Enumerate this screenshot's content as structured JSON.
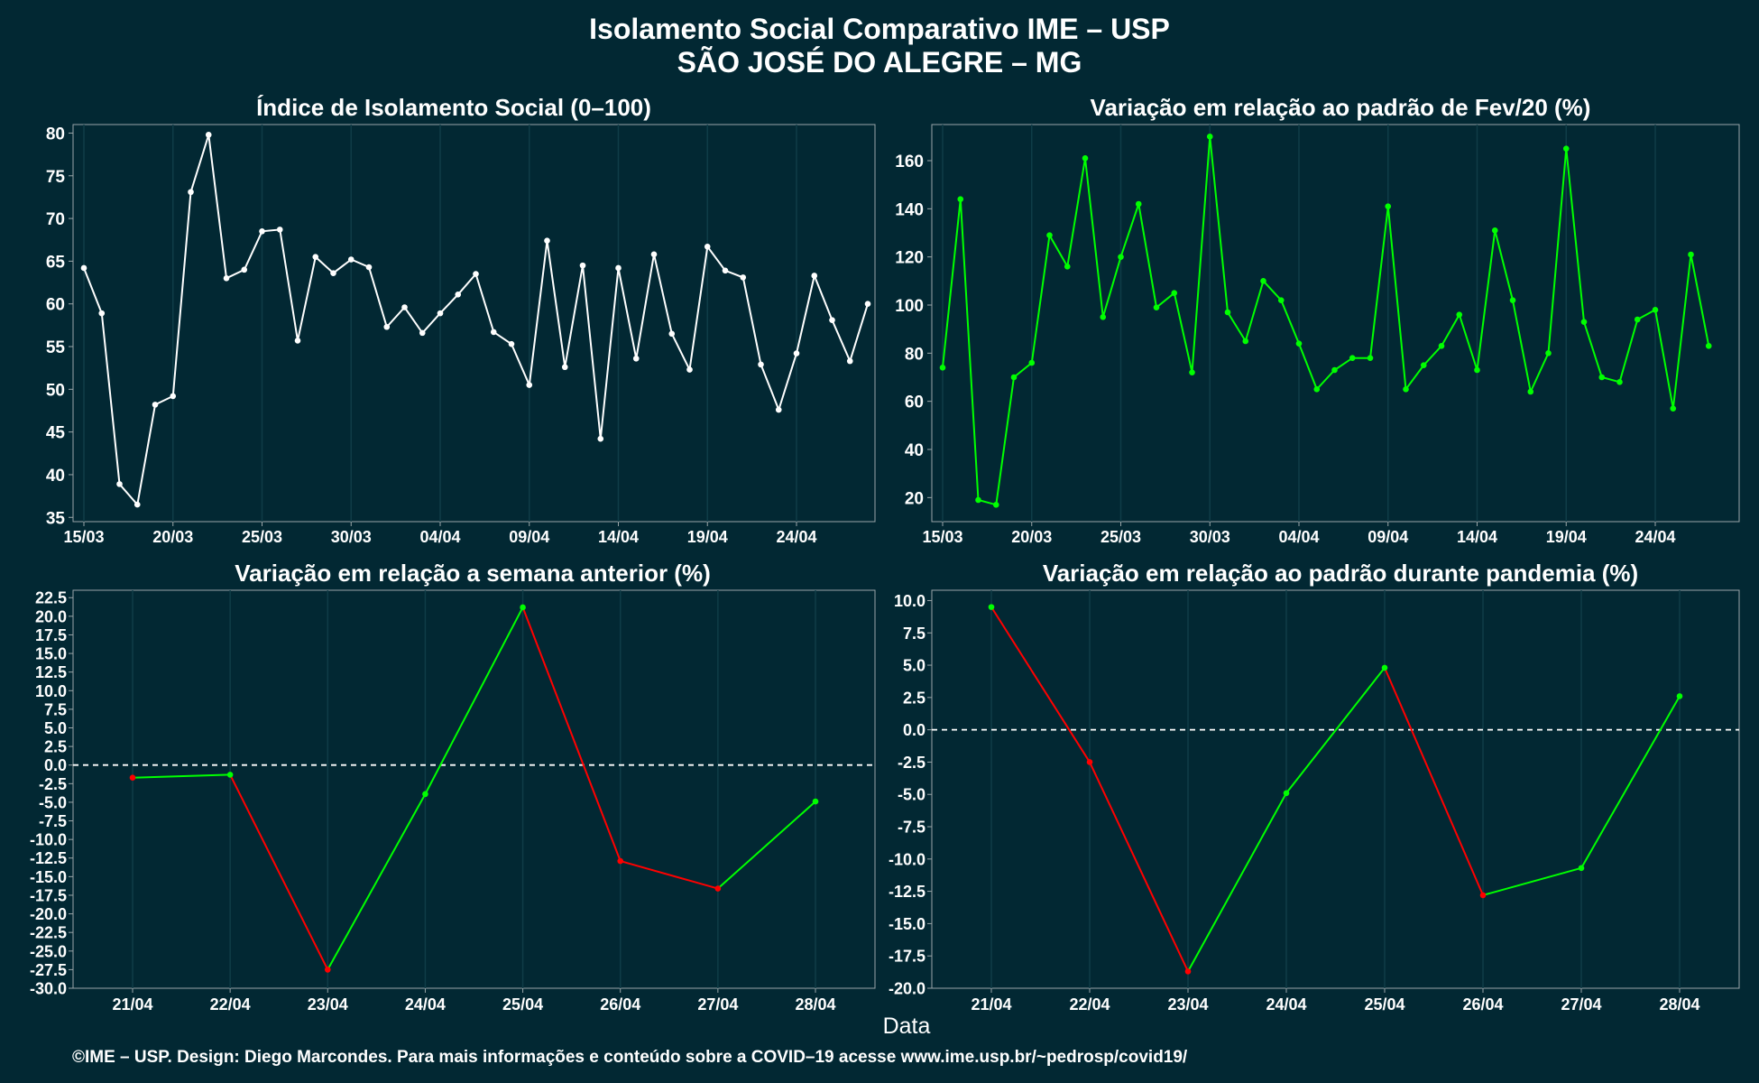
{
  "header": {
    "title_line1": "Isolamento Social Comparativo IME – USP",
    "title_line2": "SÃO JOSÉ DO ALEGRE – MG"
  },
  "footer": {
    "xlabel": "Data",
    "credits": "©IME – USP. Design: Diego Marcondes. Para mais informações e conteúdo sobre a COVID–19 acesse www.ime.usp.br/~pedrosp/covid19/"
  },
  "colors": {
    "background": "#022833",
    "white": "#ffffff",
    "green": "#00ff00",
    "red": "#ff0000",
    "grid": "#0f3c47"
  },
  "chart_data": [
    {
      "type": "line",
      "title": "Índice de Isolamento Social (0–100)",
      "x_start": "2020-03-15",
      "x_tick_labels": [
        "15/03",
        "20/03",
        "25/03",
        "30/03",
        "04/04",
        "09/04",
        "14/04",
        "19/04",
        "24/04"
      ],
      "ylim": [
        34.5,
        81
      ],
      "y_ticks": [
        35,
        40,
        45,
        50,
        55,
        60,
        65,
        70,
        75,
        80
      ],
      "series": [
        {
          "color": "#ffffff",
          "values": [
            64.2,
            58.9,
            38.9,
            36.5,
            48.2,
            49.2,
            73.1,
            79.8,
            63.0,
            64.0,
            68.5,
            68.7,
            55.7,
            65.5,
            63.6,
            65.2,
            64.3,
            57.3,
            59.6,
            56.6,
            58.9,
            61.1,
            63.5,
            56.7,
            55.3,
            50.5,
            67.4,
            52.6,
            64.5,
            44.2,
            64.2,
            53.6,
            65.8,
            56.5,
            52.3,
            66.7,
            63.9,
            63.1,
            52.9,
            47.6,
            54.2,
            63.3,
            58.1,
            53.3,
            60.0
          ]
        }
      ],
      "grid": true
    },
    {
      "type": "line",
      "title": "Variação em relação ao padrão de Fev/20 (%)",
      "x_start": "2020-03-15",
      "x_tick_labels": [
        "15/03",
        "20/03",
        "25/03",
        "30/03",
        "04/04",
        "09/04",
        "14/04",
        "19/04",
        "24/04"
      ],
      "ylim": [
        10,
        175
      ],
      "y_ticks": [
        20,
        40,
        60,
        80,
        100,
        120,
        140,
        160
      ],
      "series": [
        {
          "color": "#00ff00",
          "values": [
            74,
            144,
            19,
            17,
            70,
            76,
            129,
            116,
            161,
            95,
            120,
            142,
            99,
            105,
            72,
            170,
            97,
            85,
            110,
            102,
            84,
            65,
            73,
            78,
            78,
            141,
            65,
            75,
            83,
            96,
            73,
            131,
            102,
            64,
            80,
            165,
            93,
            70,
            68,
            94,
            98,
            57,
            121,
            83
          ]
        }
      ],
      "grid": true
    },
    {
      "type": "line",
      "title": "Variação em relação a semana anterior (%)",
      "categories": [
        "21/04",
        "22/04",
        "23/04",
        "24/04",
        "25/04",
        "26/04",
        "27/04",
        "28/04"
      ],
      "ylim": [
        -30.0,
        23.5
      ],
      "y_ticks": [
        "22.5",
        "20.0",
        "17.5",
        "15.0",
        "12.5",
        "10.0",
        "7.5",
        "5.0",
        "2.5",
        "0.0",
        "-2.5",
        "-5.0",
        "-7.5",
        "-10.0",
        "-12.5",
        "-15.0",
        "-17.5",
        "-20.0",
        "-22.5",
        "-25.0",
        "-27.5",
        "-30.0"
      ],
      "values": [
        -1.7,
        -1.3,
        -27.5,
        -3.9,
        21.2,
        -12.9,
        -16.6,
        -4.9
      ],
      "reference_line": 0,
      "segment_colors": "green when rising, red when falling",
      "grid": true
    },
    {
      "type": "line",
      "title": "Variação em relação ao padrão durante pandemia (%)",
      "categories": [
        "21/04",
        "22/04",
        "23/04",
        "24/04",
        "25/04",
        "26/04",
        "27/04",
        "28/04"
      ],
      "ylim": [
        -20.0,
        10.8
      ],
      "y_ticks": [
        "10.0",
        "7.5",
        "5.0",
        "2.5",
        "0.0",
        "-2.5",
        "-5.0",
        "-7.5",
        "-10.0",
        "-12.5",
        "-15.0",
        "-17.5",
        "-20.0"
      ],
      "values": [
        9.5,
        -2.5,
        -18.7,
        -4.9,
        4.8,
        -12.8,
        -10.7,
        2.6
      ],
      "reference_line": 0,
      "segment_colors": "green when rising, red when falling",
      "grid": true
    }
  ]
}
